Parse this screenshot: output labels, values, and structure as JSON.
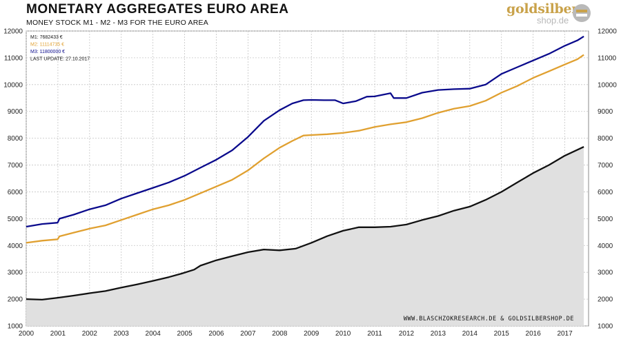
{
  "header": {
    "title": "MONETARY AGGREGATES EURO AREA",
    "subtitle": "MONEY STOCK M1 - M2 - M3 FOR THE EURO AREA"
  },
  "logo": {
    "line1": "goldsilber",
    "line2": "shop.de"
  },
  "chart_data": {
    "type": "line",
    "x_unit": "year",
    "xlim": [
      2000,
      2017.75
    ],
    "ylim": [
      1000,
      12000
    ],
    "yticks": [
      1000,
      2000,
      3000,
      4000,
      5000,
      6000,
      7000,
      8000,
      9000,
      10000,
      11000,
      12000
    ],
    "xticks": [
      "2000",
      "2001",
      "2002",
      "2003",
      "2004",
      "2005",
      "2006",
      "2007",
      "2008",
      "2009",
      "2010",
      "2011",
      "2012",
      "2013",
      "2014",
      "2015",
      "2016",
      "2017"
    ],
    "grid": true,
    "legend": [
      {
        "label": "M1: 7682433  €",
        "color": "#111111"
      },
      {
        "label": "M2: 11114735  €",
        "color": "#e0a030"
      },
      {
        "label": "M3: 11800000  €",
        "color": "#0a0a8c"
      },
      {
        "label": "LAST UPDATE: 27.10.2017",
        "color": "#111111"
      }
    ],
    "credit": "WWW.BLASCHZOKRESEARCH.DE & GOLDSILBERSHOP.DE",
    "series": [
      {
        "name": "M3",
        "color": "#0a0a8c",
        "fill": false,
        "points": [
          [
            2000,
            4700
          ],
          [
            2000.5,
            4800
          ],
          [
            2000.99,
            4850
          ],
          [
            2001.05,
            5000
          ],
          [
            2001.5,
            5150
          ],
          [
            2002,
            5350
          ],
          [
            2002.5,
            5500
          ],
          [
            2003,
            5750
          ],
          [
            2003.5,
            5950
          ],
          [
            2004,
            6150
          ],
          [
            2004.5,
            6350
          ],
          [
            2005,
            6600
          ],
          [
            2005.5,
            6900
          ],
          [
            2006,
            7200
          ],
          [
            2006.5,
            7550
          ],
          [
            2007,
            8050
          ],
          [
            2007.5,
            8650
          ],
          [
            2008,
            9050
          ],
          [
            2008.4,
            9300
          ],
          [
            2008.75,
            9420
          ],
          [
            2009,
            9430
          ],
          [
            2009.4,
            9420
          ],
          [
            2009.75,
            9420
          ],
          [
            2010,
            9300
          ],
          [
            2010.4,
            9380
          ],
          [
            2010.75,
            9550
          ],
          [
            2011,
            9560
          ],
          [
            2011.5,
            9680
          ],
          [
            2011.6,
            9500
          ],
          [
            2012,
            9500
          ],
          [
            2012.5,
            9700
          ],
          [
            2013,
            9800
          ],
          [
            2013.5,
            9830
          ],
          [
            2014,
            9850
          ],
          [
            2014.5,
            10000
          ],
          [
            2015,
            10400
          ],
          [
            2015.5,
            10650
          ],
          [
            2016,
            10900
          ],
          [
            2016.5,
            11150
          ],
          [
            2017,
            11450
          ],
          [
            2017.4,
            11650
          ],
          [
            2017.6,
            11800
          ]
        ]
      },
      {
        "name": "M2",
        "color": "#e0a030",
        "fill": false,
        "points": [
          [
            2000,
            4100
          ],
          [
            2000.5,
            4180
          ],
          [
            2000.99,
            4230
          ],
          [
            2001.05,
            4340
          ],
          [
            2001.5,
            4480
          ],
          [
            2002,
            4630
          ],
          [
            2002.5,
            4750
          ],
          [
            2003,
            4950
          ],
          [
            2003.5,
            5150
          ],
          [
            2004,
            5350
          ],
          [
            2004.5,
            5500
          ],
          [
            2005,
            5700
          ],
          [
            2005.5,
            5950
          ],
          [
            2006,
            6200
          ],
          [
            2006.5,
            6450
          ],
          [
            2007,
            6800
          ],
          [
            2007.5,
            7250
          ],
          [
            2008,
            7650
          ],
          [
            2008.4,
            7900
          ],
          [
            2008.75,
            8100
          ],
          [
            2009,
            8120
          ],
          [
            2009.5,
            8150
          ],
          [
            2010,
            8200
          ],
          [
            2010.5,
            8280
          ],
          [
            2011,
            8420
          ],
          [
            2011.5,
            8520
          ],
          [
            2012,
            8600
          ],
          [
            2012.5,
            8750
          ],
          [
            2013,
            8950
          ],
          [
            2013.5,
            9100
          ],
          [
            2014,
            9200
          ],
          [
            2014.5,
            9400
          ],
          [
            2015,
            9700
          ],
          [
            2015.5,
            9950
          ],
          [
            2016,
            10250
          ],
          [
            2016.5,
            10500
          ],
          [
            2017,
            10750
          ],
          [
            2017.4,
            10950
          ],
          [
            2017.6,
            11110
          ]
        ]
      },
      {
        "name": "M1",
        "color": "#111111",
        "fill": true,
        "points": [
          [
            2000,
            2000
          ],
          [
            2000.5,
            1980
          ],
          [
            2001,
            2050
          ],
          [
            2001.5,
            2130
          ],
          [
            2002,
            2220
          ],
          [
            2002.5,
            2300
          ],
          [
            2003,
            2430
          ],
          [
            2003.5,
            2550
          ],
          [
            2004,
            2680
          ],
          [
            2004.5,
            2820
          ],
          [
            2004.9,
            2950
          ],
          [
            2005.3,
            3100
          ],
          [
            2005.5,
            3250
          ],
          [
            2006,
            3450
          ],
          [
            2006.5,
            3600
          ],
          [
            2007,
            3750
          ],
          [
            2007.5,
            3850
          ],
          [
            2008,
            3820
          ],
          [
            2008.5,
            3880
          ],
          [
            2009,
            4100
          ],
          [
            2009.5,
            4350
          ],
          [
            2010,
            4550
          ],
          [
            2010.5,
            4680
          ],
          [
            2011,
            4680
          ],
          [
            2011.5,
            4700
          ],
          [
            2012,
            4780
          ],
          [
            2012.5,
            4950
          ],
          [
            2013,
            5100
          ],
          [
            2013.5,
            5300
          ],
          [
            2014,
            5450
          ],
          [
            2014.5,
            5700
          ],
          [
            2015,
            6000
          ],
          [
            2015.5,
            6350
          ],
          [
            2016,
            6700
          ],
          [
            2016.5,
            7000
          ],
          [
            2017,
            7350
          ],
          [
            2017.6,
            7680
          ]
        ]
      }
    ]
  }
}
